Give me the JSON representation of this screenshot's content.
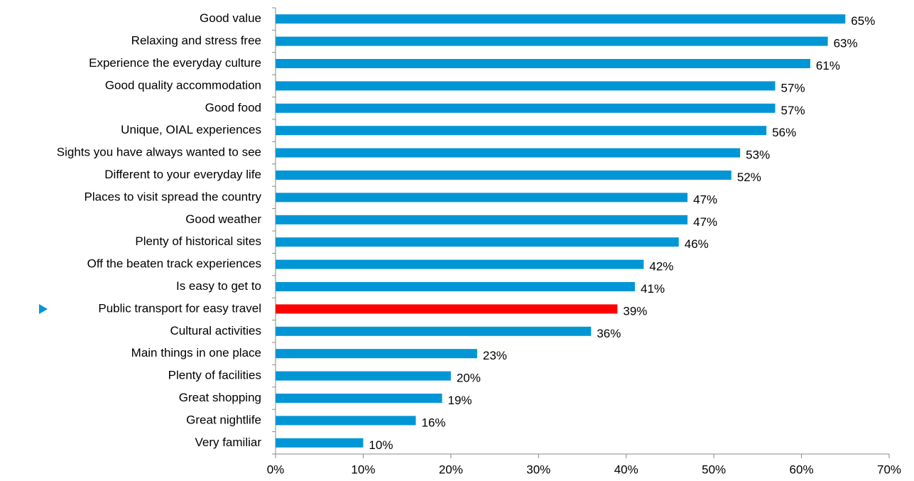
{
  "chart_data": {
    "type": "bar",
    "orientation": "horizontal",
    "categories": [
      "Good value",
      "Relaxing and stress free",
      "Experience the everyday culture",
      "Good quality accommodation",
      "Good food",
      "Unique, OIAL experiences",
      "Sights you have always wanted to see",
      "Different to your everyday life",
      "Places to visit spread the country",
      "Good weather",
      "Plenty of historical sites",
      "Off the beaten track experiences",
      "Is easy to get to",
      "Public transport for easy travel",
      "Cultural activities",
      "Main things in one place",
      "Plenty of facilities",
      "Great shopping",
      "Great nightlife",
      "Very familiar"
    ],
    "values": [
      65,
      63,
      61,
      57,
      57,
      56,
      53,
      52,
      47,
      47,
      46,
      42,
      41,
      39,
      36,
      23,
      20,
      19,
      16,
      10
    ],
    "value_labels": [
      "65%",
      "63%",
      "61%",
      "57%",
      "57%",
      "56%",
      "53%",
      "52%",
      "47%",
      "47%",
      "46%",
      "42%",
      "41%",
      "39%",
      "36%",
      "23%",
      "20%",
      "19%",
      "16%",
      "10%"
    ],
    "colors": [
      "#0096d6",
      "#0096d6",
      "#0096d6",
      "#0096d6",
      "#0096d6",
      "#0096d6",
      "#0096d6",
      "#0096d6",
      "#0096d6",
      "#0096d6",
      "#0096d6",
      "#0096d6",
      "#0096d6",
      "#ff0000",
      "#0096d6",
      "#0096d6",
      "#0096d6",
      "#0096d6",
      "#0096d6",
      "#0096d6"
    ],
    "xlim": [
      0,
      70
    ],
    "xticks": [
      {
        "value": 0,
        "label": "0%"
      },
      {
        "value": 10,
        "label": "10%"
      },
      {
        "value": 20,
        "label": "20%"
      },
      {
        "value": 30,
        "label": "30%"
      },
      {
        "value": 40,
        "label": "40%"
      },
      {
        "value": 50,
        "label": "50%"
      },
      {
        "value": 60,
        "label": "60%"
      },
      {
        "value": 70,
        "label": "70%"
      }
    ],
    "grid": false
  }
}
